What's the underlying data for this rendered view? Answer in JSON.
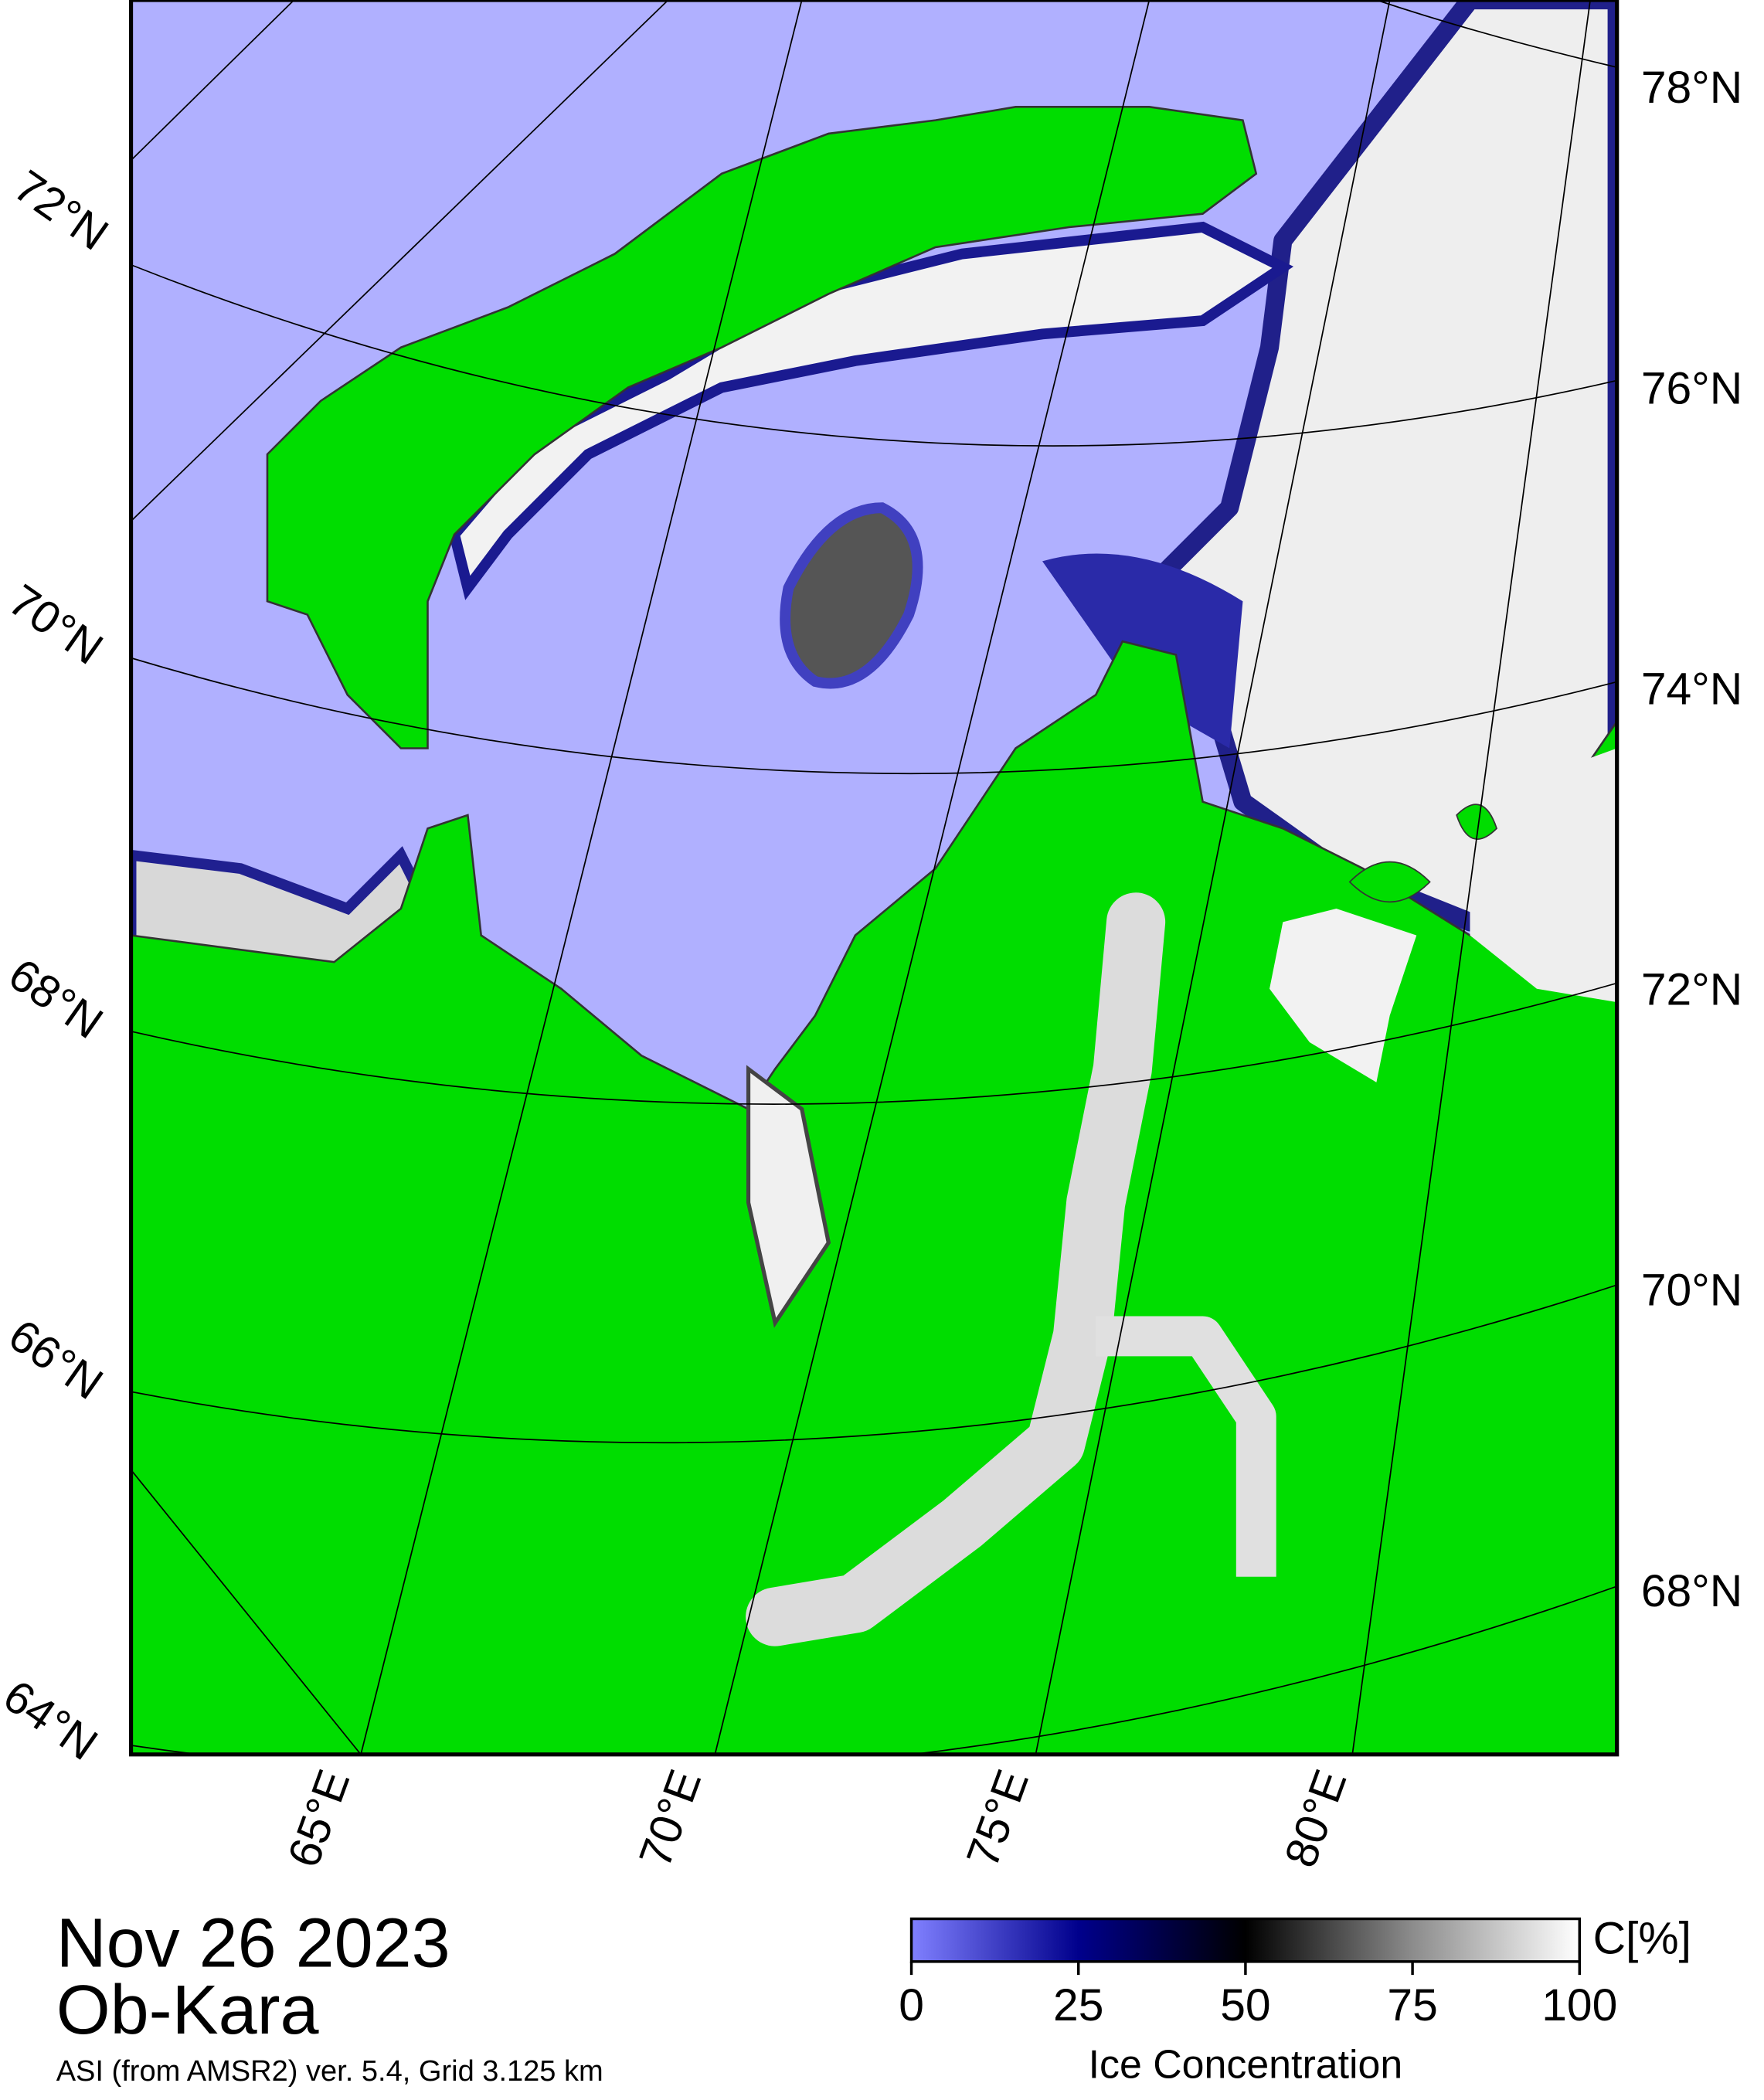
{
  "map": {
    "date": "Nov 26 2023",
    "region": "Ob-Kara",
    "source": "ASI (from AMSR2) ver. 5.4,  Grid 3.125 km",
    "lat_labels_right": [
      "78°N",
      "76°N",
      "74°N",
      "72°N",
      "70°N",
      "68°N"
    ],
    "lat_labels_left": [
      "72°N",
      "70°N",
      "68°N",
      "66°N",
      "64°N"
    ],
    "lon_labels": [
      "65°E",
      "70°E",
      "75°E",
      "80°E"
    ],
    "colorbar": {
      "label": "Ice Concentration",
      "unit": "C[%]",
      "range": [
        0,
        100
      ],
      "ticks": [
        0,
        25,
        50,
        75,
        100
      ],
      "colors": [
        "#8080ff",
        "#00008c",
        "#000000",
        "#8c8c8c",
        "#ffffff"
      ]
    }
  }
}
